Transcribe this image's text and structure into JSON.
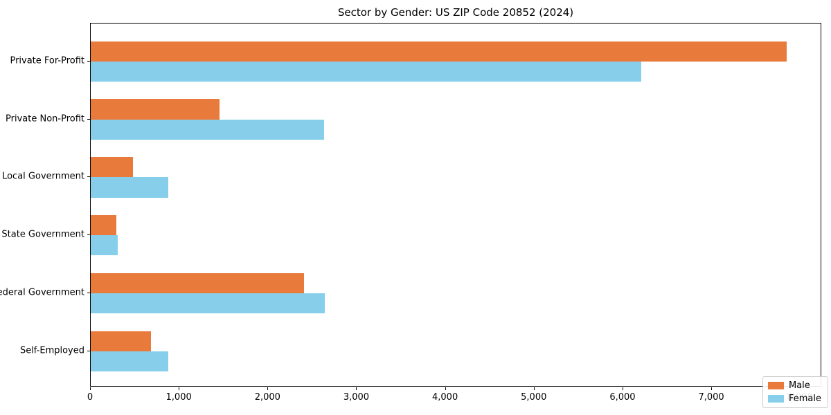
{
  "chart_data": {
    "type": "bar",
    "orientation": "horizontal",
    "title": "Sector by Gender: US ZIP Code 20852 (2024)",
    "categories": [
      "Private For-Profit",
      "Private Non-Profit",
      "Local Government",
      "State Government",
      "Federal Government",
      "Self-Employed"
    ],
    "series": [
      {
        "name": "Male",
        "color": "#e87a3c",
        "values": [
          7845,
          1450,
          475,
          290,
          2405,
          680
        ]
      },
      {
        "name": "Female",
        "color": "#87ceeb",
        "values": [
          6200,
          2630,
          875,
          305,
          2640,
          875
        ]
      }
    ],
    "xlabel": "",
    "ylabel": "",
    "xlim": [
      0,
      8240
    ],
    "x_ticks": [
      0,
      1000,
      2000,
      3000,
      4000,
      5000,
      6000,
      7000,
      8000
    ],
    "x_tick_labels": [
      "0",
      "1,000",
      "2,000",
      "3,000",
      "4,000",
      "5,000",
      "6,000",
      "7,000",
      "8,000"
    ],
    "legend_position": "lower right",
    "grid": false
  }
}
